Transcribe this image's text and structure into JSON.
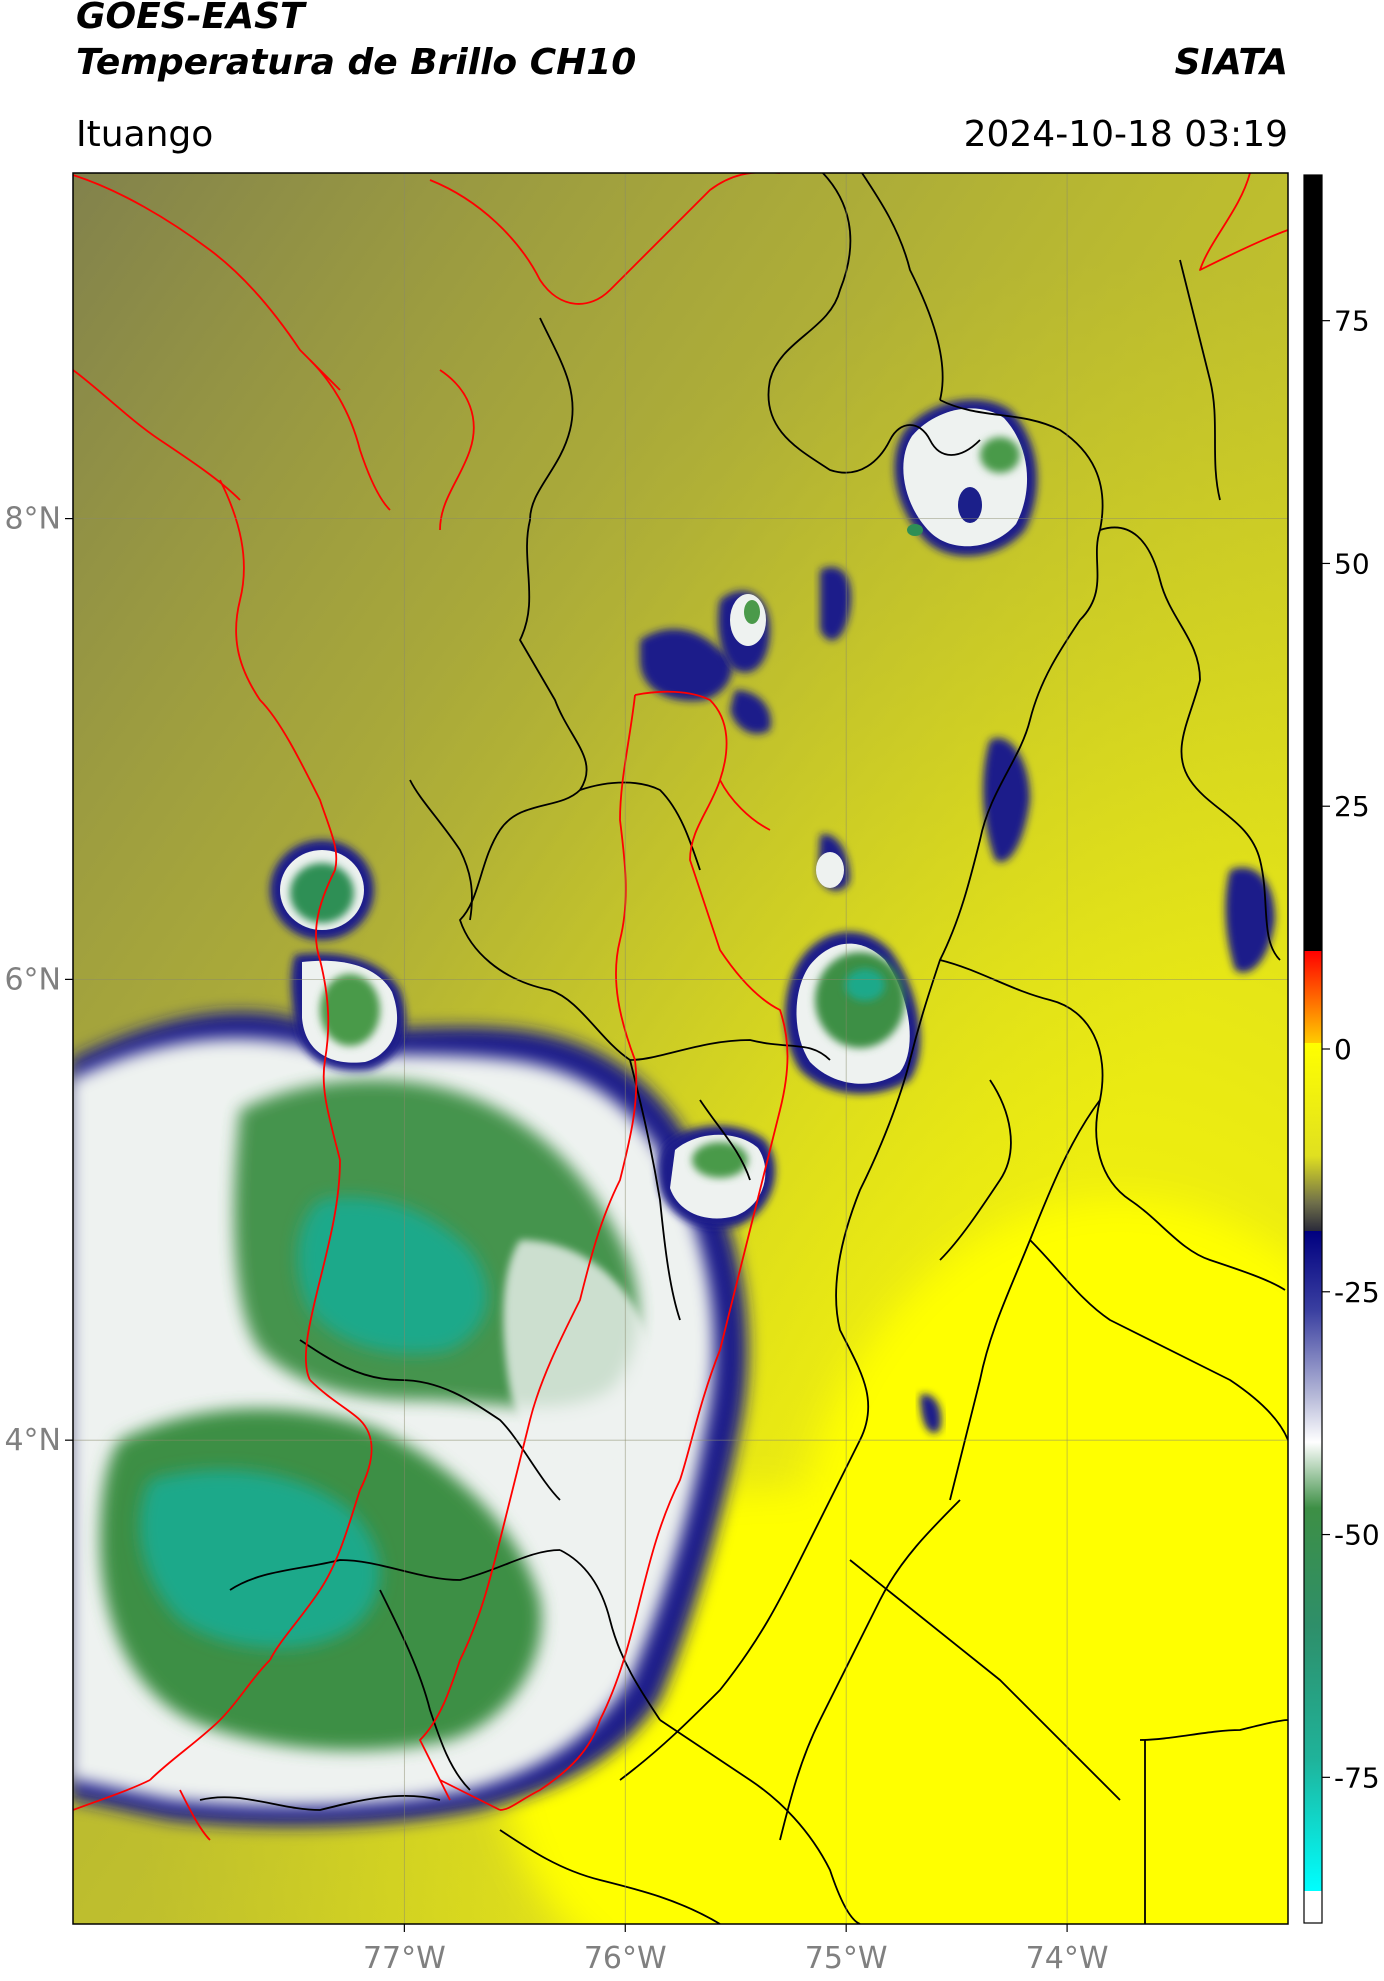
{
  "header": {
    "satellite": "GOES-EAST",
    "product": "Temperatura de Brillo CH10",
    "agency": "SIATA",
    "place": "Ituango",
    "datetime": "2024-10-18 03:19"
  },
  "map": {
    "lon_range": [
      -78.5,
      -73.0
    ],
    "lat_range": [
      1.9,
      9.5
    ],
    "lon_ticks": [
      {
        "value": -77,
        "label": "77°W"
      },
      {
        "value": -76,
        "label": "76°W"
      },
      {
        "value": -75,
        "label": "75°W"
      },
      {
        "value": -74,
        "label": "74°W"
      }
    ],
    "lat_ticks": [
      {
        "value": 8,
        "label": "8°N"
      },
      {
        "value": 6,
        "label": "6°N"
      },
      {
        "value": 4,
        "label": "4°N"
      }
    ],
    "gridlines": true,
    "colors": {
      "background_warm": "#d8d418",
      "cloud_edge": "#1b1f8a",
      "cloud_mid": "#f0f4f2",
      "cloud_cold": "#2f8a3a",
      "cloud_core": "#1fa98a",
      "boundary_red": "#ff0000",
      "boundary_black": "#000000"
    }
  },
  "colorbar": {
    "label_ticks": [
      {
        "value": 75,
        "label": "75"
      },
      {
        "value": 50,
        "label": "50"
      },
      {
        "value": 25,
        "label": "25"
      },
      {
        "value": 0,
        "label": "0"
      },
      {
        "value": -25,
        "label": "-25"
      },
      {
        "value": -50,
        "label": "-50"
      },
      {
        "value": -75,
        "label": "-75"
      }
    ],
    "range": [
      -90,
      90
    ]
  }
}
